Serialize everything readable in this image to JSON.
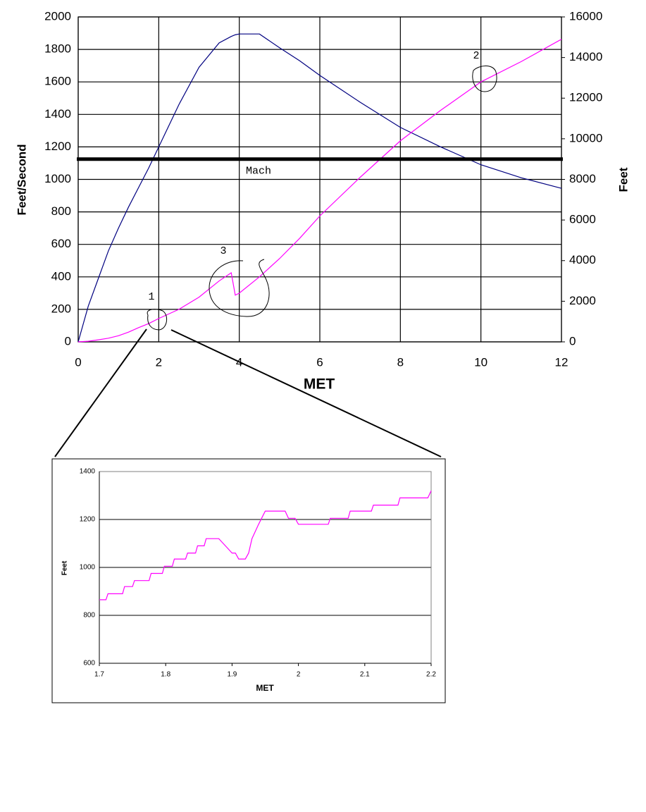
{
  "chart_data": [
    {
      "type": "line",
      "x_label": "MET",
      "y_label": "Feet/Second",
      "y2_label": "Feet",
      "xlim": [
        0,
        12
      ],
      "xticks": [
        0,
        2,
        4,
        6,
        8,
        10,
        12
      ],
      "ylim": [
        0,
        2000
      ],
      "yticks": [
        0,
        200,
        400,
        600,
        800,
        1000,
        1200,
        1400,
        1600,
        1800,
        2000
      ],
      "y2lim": [
        0,
        16000
      ],
      "y2ticks": [
        0,
        2000,
        4000,
        6000,
        8000,
        10000,
        12000,
        14000,
        16000
      ],
      "grid": "both",
      "x": [
        0,
        0.25,
        0.5,
        0.75,
        1,
        1.25,
        1.5,
        1.75,
        2,
        2.5,
        3,
        3.5,
        3.8,
        3.9,
        4,
        4.5,
        5,
        5.5,
        6,
        7,
        8,
        9,
        10,
        11,
        12
      ],
      "series": [
        {
          "color": "#000080",
          "values": [
            0,
            220,
            390,
            560,
            700,
            830,
            950,
            1070,
            1200,
            1460,
            1690,
            1840,
            1880,
            1890,
            1895,
            1895,
            1810,
            1730,
            1640,
            1475,
            1320,
            1200,
            1090,
            1010,
            945
          ]
        },
        {
          "color": "#ff00ff",
          "axis": "y2",
          "values": [
            0,
            30,
            100,
            180,
            300,
            480,
            700,
            900,
            1150,
            1600,
            2200,
            3000,
            3400,
            2300,
            2400,
            3200,
            4100,
            5100,
            6200,
            8100,
            9900,
            11400,
            12800,
            13800,
            14900
          ]
        }
      ],
      "reference_lines": [
        {
          "value": 1125,
          "label": "Mach"
        }
      ],
      "annotations": [
        "1",
        "2",
        "3"
      ]
    },
    {
      "type": "line",
      "x_label": "MET",
      "y_label": "Feet",
      "xlim": [
        1.7,
        2.2
      ],
      "xticks": [
        1.7,
        1.8,
        1.9,
        2,
        2.1,
        2.2
      ],
      "ylim": [
        600,
        1400
      ],
      "yticks": [
        600,
        800,
        1000,
        1200,
        1400
      ],
      "grid": "y",
      "x": [
        1.7,
        1.71,
        1.713,
        1.735,
        1.738,
        1.75,
        1.753,
        1.775,
        1.778,
        1.795,
        1.798,
        1.81,
        1.813,
        1.83,
        1.833,
        1.845,
        1.848,
        1.858,
        1.861,
        1.88,
        1.89,
        1.9,
        1.905,
        1.91,
        1.92,
        1.925,
        1.93,
        1.94,
        1.95,
        1.98,
        1.985,
        1.995,
        2,
        2.045,
        2.048,
        2.075,
        2.078,
        2.11,
        2.113,
        2.15,
        2.153,
        2.195,
        2.2
      ],
      "series": [
        {
          "color": "#ff00ff",
          "values": [
            865,
            865,
            890,
            890,
            920,
            920,
            945,
            945,
            975,
            975,
            1005,
            1005,
            1035,
            1035,
            1060,
            1060,
            1090,
            1090,
            1120,
            1120,
            1090,
            1060,
            1060,
            1035,
            1035,
            1060,
            1120,
            1180,
            1235,
            1235,
            1205,
            1205,
            1180,
            1180,
            1205,
            1205,
            1235,
            1235,
            1260,
            1260,
            1290,
            1290,
            1320
          ]
        }
      ]
    }
  ]
}
